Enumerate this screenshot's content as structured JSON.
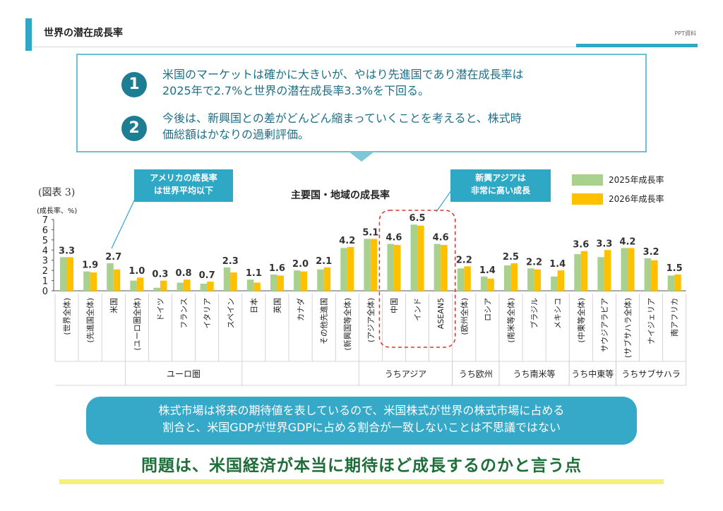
{
  "header": {
    "title": "世界の潜在成長率",
    "right_label": "PPT資料"
  },
  "intro": {
    "points": [
      {
        "number": "1",
        "line1": "米国のマーケットは確かに大きいが、やはり先進国であり潜在成長率は",
        "line2": "2025年で2.7%と世界の潜在成長率3.3%を下回る。"
      },
      {
        "number": "2",
        "line1": "今後は、新興国との差がどんどん縮まっていくことを考えると、株式時",
        "line2": "価総額はかなりの過剰評価。"
      }
    ]
  },
  "callouts": {
    "america": {
      "line1": "アメリカの成長率",
      "line2": "は世界平均以下"
    },
    "asia": {
      "line1": "新興アジアは",
      "line2": "非常に高い成長"
    }
  },
  "figure_label": "(図表 3)",
  "chart_data": {
    "type": "bar",
    "title": "主要国・地域の成長率",
    "ylabel": "(成長率、%)",
    "ylim": [
      0,
      7
    ],
    "yticks": [
      "0",
      "1",
      "2",
      "3",
      "4",
      "5",
      "6",
      "7"
    ],
    "categories": [
      "(世界全体)",
      "(先進国全体)",
      "米国",
      "(ユーロ圏全体)",
      "ドイツ",
      "フランス",
      "イタリア",
      "スペイン",
      "日本",
      "英国",
      "カナダ",
      "その他先進国",
      "(新興国等全体)",
      "(アジア全体)",
      "中国",
      "インド",
      "ASEAN5",
      "(欧州全体)",
      "ロシア",
      "(南米等全体)",
      "ブラジル",
      "メキシコ",
      "(中東等全体)",
      "サウジアラビア",
      "(サブサハラ全体)",
      "ナイジェリア",
      "南アフリカ"
    ],
    "series": [
      {
        "name": "2025年成長率",
        "color": "#a9d18e",
        "values": [
          3.3,
          1.9,
          2.7,
          1.0,
          0.3,
          0.8,
          0.7,
          2.3,
          1.1,
          1.6,
          2.0,
          2.1,
          4.2,
          5.1,
          4.6,
          6.5,
          4.6,
          2.2,
          1.4,
          2.5,
          2.2,
          1.4,
          3.6,
          3.3,
          4.2,
          3.2,
          1.5
        ]
      },
      {
        "name": "2026年成長率",
        "color": "#ffc000",
        "values": [
          3.3,
          1.8,
          2.1,
          1.3,
          1.0,
          1.1,
          0.9,
          1.8,
          0.8,
          1.5,
          1.9,
          2.3,
          4.3,
          5.1,
          4.5,
          6.4,
          4.5,
          2.4,
          1.2,
          2.7,
          2.1,
          2.0,
          3.9,
          4.0,
          4.2,
          3.0,
          1.6
        ]
      }
    ],
    "data_labels": [
      "3.3",
      "1.9",
      "2.7",
      "1.0",
      "0.3",
      "0.8",
      "0.7",
      "2.3",
      "1.1",
      "1.6",
      "2.0",
      "2.1",
      "4.2",
      "5.1",
      "4.6",
      "6.5",
      "4.6",
      "2.2",
      "1.4",
      "2.5",
      "2.2",
      "1.4",
      "3.6",
      "3.3",
      "4.2",
      "3.2",
      "1.5"
    ],
    "groups": [
      {
        "label": "ユーロ圏",
        "start": 3,
        "end": 7
      },
      {
        "label": "うちアジア",
        "start": 13,
        "end": 16
      },
      {
        "label": "うち欧州",
        "start": 17,
        "end": 18
      },
      {
        "label": "うち南米等",
        "start": 19,
        "end": 21
      },
      {
        "label": "うち中東等",
        "start": 22,
        "end": 23
      },
      {
        "label": "うちサブサハラ",
        "start": 24,
        "end": 26
      }
    ],
    "highlight": {
      "start": 14,
      "end": 16
    },
    "legend_position": "top-right",
    "grid": false
  },
  "note": {
    "line1": "株式市場は将来の期待値を表しているので、米国株式が世界の株式市場に占める",
    "line2": "割合と、米国GDPが世界GDPに占める割合が一致しないことは不思議ではない"
  },
  "conclusion": "問題は、米国経済が本当に期待ほど成長するのかと言う点"
}
